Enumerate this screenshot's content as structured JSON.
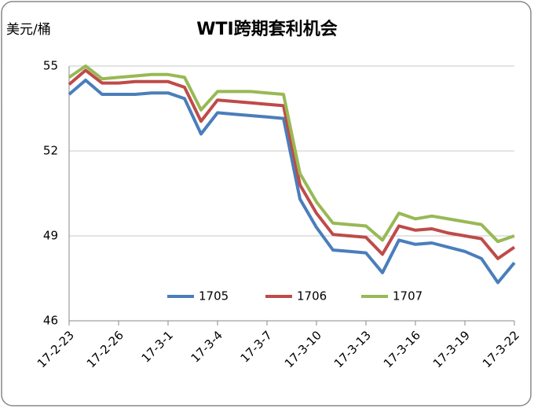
{
  "chart_data": {
    "type": "line",
    "title": "WTI跨期套利机会",
    "y_label": "美元/桶",
    "categories": [
      "17-2-23",
      null,
      null,
      "17-2-26",
      null,
      null,
      "17-3-1",
      null,
      null,
      "17-3-4",
      null,
      null,
      "17-3-7",
      null,
      null,
      "17-3-10",
      null,
      null,
      "17-3-13",
      null,
      null,
      "17-3-16",
      null,
      null,
      "17-3-19",
      null,
      null,
      "17-3-22"
    ],
    "series": [
      {
        "name": "1705",
        "color": "#4a7ebb",
        "values": [
          54.0,
          54.5,
          54.0,
          54.0,
          54.0,
          54.05,
          54.05,
          53.85,
          52.6,
          53.35,
          53.3,
          53.25,
          53.2,
          53.15,
          50.3,
          49.3,
          48.5,
          48.45,
          48.4,
          47.7,
          48.85,
          48.7,
          48.75,
          48.6,
          48.45,
          48.2,
          47.35,
          48.05
        ]
      },
      {
        "name": "1706",
        "color": "#be4b48",
        "values": [
          54.35,
          54.85,
          54.4,
          54.4,
          54.45,
          54.45,
          54.45,
          54.25,
          53.05,
          53.8,
          53.75,
          53.7,
          53.65,
          53.6,
          50.8,
          49.8,
          49.05,
          49.0,
          48.95,
          48.35,
          49.35,
          49.2,
          49.25,
          49.1,
          49.0,
          48.9,
          48.2,
          48.6
        ]
      },
      {
        "name": "1707",
        "color": "#98b954",
        "values": [
          54.6,
          55.0,
          54.55,
          54.6,
          54.65,
          54.7,
          54.7,
          54.6,
          53.45,
          54.1,
          54.1,
          54.1,
          54.05,
          54.0,
          51.2,
          50.2,
          49.45,
          49.4,
          49.35,
          48.85,
          49.8,
          49.6,
          49.7,
          49.6,
          49.5,
          49.4,
          48.8,
          49.0
        ]
      }
    ],
    "ylim": [
      46,
      55
    ],
    "yticks": [
      46,
      49,
      52,
      55
    ],
    "grid": true
  }
}
